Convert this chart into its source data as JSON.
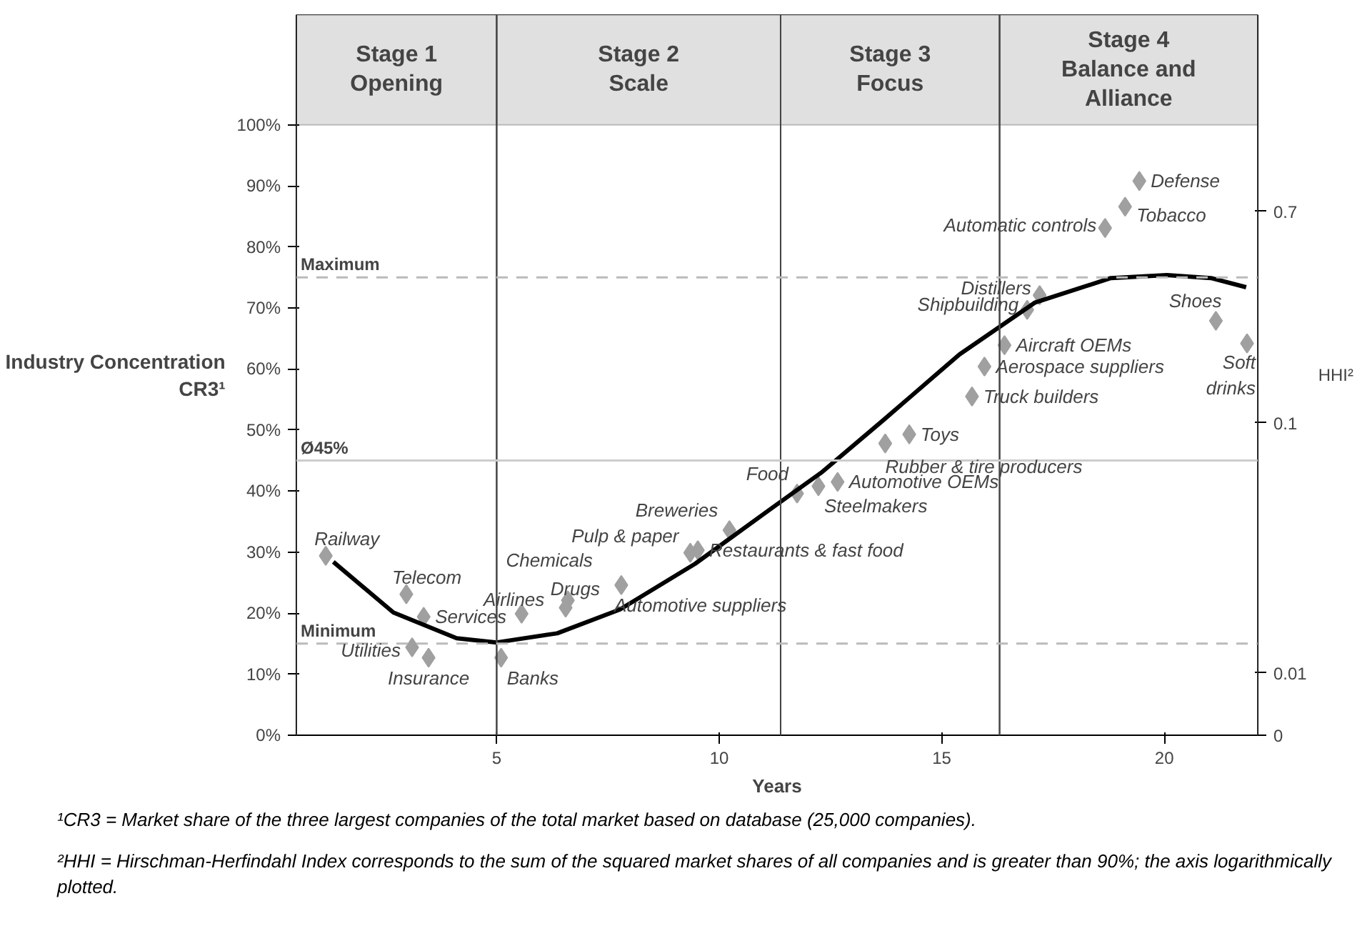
{
  "chart_data": {
    "type": "scatter",
    "xlabel": "Years",
    "ylabel": "Industry Concentration\nCR3¹",
    "y2label": "HHI²",
    "xlim": [
      0.5,
      22.1
    ],
    "xticks": [
      5,
      10,
      15,
      20
    ],
    "ylim": [
      0,
      118
    ],
    "yticks": [
      {
        "value": 0,
        "label": "0%"
      },
      {
        "value": 10,
        "label": "10%"
      },
      {
        "value": 20,
        "label": "20%"
      },
      {
        "value": 30,
        "label": "30%"
      },
      {
        "value": 40,
        "label": "40%"
      },
      {
        "value": 50,
        "label": "50%"
      },
      {
        "value": 60,
        "label": "60%"
      },
      {
        "value": 70,
        "label": "70%"
      },
      {
        "value": 80,
        "label": "80%"
      },
      {
        "value": 90,
        "label": "90%"
      },
      {
        "value": 100,
        "label": "100%"
      }
    ],
    "y2lim": [
      0.00564,
      4.27
    ],
    "y2ticks": [
      {
        "value": 0.00564,
        "label": "0"
      },
      0.01,
      0.1,
      0.7
    ],
    "log": "y2",
    "series": [
      {
        "marker": "diamond",
        "color": "#a0a0a0",
        "x": [
          1.16,
          2.97,
          3.36,
          3.1,
          3.47,
          5.1,
          5.56,
          6.6,
          6.55,
          7.8,
          9.35,
          9.52,
          10.23,
          11.75,
          12.23,
          12.66,
          13.73,
          14.27,
          15.68,
          15.96,
          16.41,
          16.92,
          17.2,
          18.67,
          19.12,
          19.44,
          21.16,
          21.86
        ],
        "values": [
          29.4,
          23.1,
          19.4,
          14.4,
          12.7,
          12.7,
          19.9,
          22.1,
          20.9,
          24.6,
          29.9,
          30.3,
          33.6,
          39.6,
          40.8,
          41.5,
          47.8,
          49.3,
          55.5,
          60.4,
          63.9,
          69.7,
          72.1,
          83.1,
          86.6,
          90.8,
          67.9,
          64.2
        ]
      },
      {
        "type": "line",
        "color": "#000000",
        "x": [
          1.33,
          2.68,
          4.1,
          5,
          6.36,
          7.77,
          9.46,
          11.16,
          12.29,
          13.7,
          15.4,
          17.1,
          18.8,
          20.06,
          21.05,
          21.84
        ],
        "values": [
          28.4,
          20.1,
          15.9,
          15.2,
          16.7,
          20.6,
          28.1,
          37.1,
          43,
          51.7,
          62.4,
          70.9,
          74.9,
          75.4,
          74.9,
          73.4
        ]
      }
    ],
    "ref_lines": [
      {
        "axis": "y",
        "value": 75,
        "label": "Maximum",
        "color": "#bbbbbb",
        "line_style": "dashed"
      },
      {
        "axis": "y",
        "value": 15,
        "label": "Minimum",
        "color": "#bbbbbb",
        "line_style": "dashed"
      },
      {
        "axis": "y",
        "value": 45,
        "label": "Ø45%",
        "color": "#cccccc",
        "line_style": "solid"
      }
    ],
    "bands": [
      {
        "axis": "x",
        "from": 0.5,
        "to": 5,
        "label": "Stage 1\nOpening"
      },
      {
        "axis": "x",
        "from": 5,
        "to": 11.38,
        "label": "Stage 2\nScale"
      },
      {
        "axis": "x",
        "from": 11.38,
        "to": 16.3,
        "label": "Stage 3\nFocus"
      },
      {
        "axis": "x",
        "from": 16.3,
        "to": 22.1,
        "label": "Stage 4\nBalance and\nAlliance"
      }
    ],
    "annotations": [
      {
        "text": "Railway",
        "x": 1.16,
        "y": 29.4
      },
      {
        "text": "Telecom",
        "x": 2.97,
        "y": 23.1
      },
      {
        "text": "Services",
        "x": 3.36,
        "y": 19.4
      },
      {
        "text": "Utilities",
        "x": 3.1,
        "y": 14.4
      },
      {
        "text": "Insurance",
        "x": 3.47,
        "y": 12.7
      },
      {
        "text": "Banks",
        "x": 5.1,
        "y": 12.7
      },
      {
        "text": "Airlines",
        "x": 5.56,
        "y": 19.9
      },
      {
        "text": "Chemicals",
        "x": 6.6,
        "y": 22.1
      },
      {
        "text": "Drugs",
        "x": 6.55,
        "y": 20.9
      },
      {
        "text": "Automotive suppliers",
        "x": 7.8,
        "y": 24.6
      },
      {
        "text": "Pulp & paper",
        "x": 9.35,
        "y": 29.9
      },
      {
        "text": "Restaurants & fast food",
        "x": 9.52,
        "y": 30.3
      },
      {
        "text": "Breweries",
        "x": 10.23,
        "y": 33.6
      },
      {
        "text": "Food",
        "x": 11.75,
        "y": 39.6
      },
      {
        "text": "Steelmakers",
        "x": 12.23,
        "y": 40.8
      },
      {
        "text": "Automotive OEMs",
        "x": 12.66,
        "y": 41.5
      },
      {
        "text": "Rubber & tire producers",
        "x": 13.73,
        "y": 47.8
      },
      {
        "text": "Toys",
        "x": 14.27,
        "y": 49.3
      },
      {
        "text": "Truck builders",
        "x": 15.68,
        "y": 55.5
      },
      {
        "text": "Aerospace suppliers",
        "x": 15.96,
        "y": 60.4
      },
      {
        "text": "Aircraft OEMs",
        "x": 16.41,
        "y": 63.9
      },
      {
        "text": "Shipbuilding",
        "x": 16.92,
        "y": 69.7
      },
      {
        "text": "Distillers",
        "x": 17.2,
        "y": 72.1
      },
      {
        "text": "Automatic controls",
        "x": 18.67,
        "y": 83.1
      },
      {
        "text": "Tobacco",
        "x": 19.12,
        "y": 86.6
      },
      {
        "text": "Defense",
        "x": 19.44,
        "y": 90.8
      },
      {
        "text": "Shoes",
        "x": 21.16,
        "y": 67.9
      },
      {
        "text": "Soft\ndrinks",
        "x": 21.86,
        "y": 64.2
      },
      "¹CR3 = Market share of the three largest companies of the total market based on database (25,000 companies).",
      "²HHI = Hirschman-Herfindahl Index corresponds to the sum of the squared market shares of all companies and is greater than 90%; the axis logarithmically plotted."
    ]
  }
}
